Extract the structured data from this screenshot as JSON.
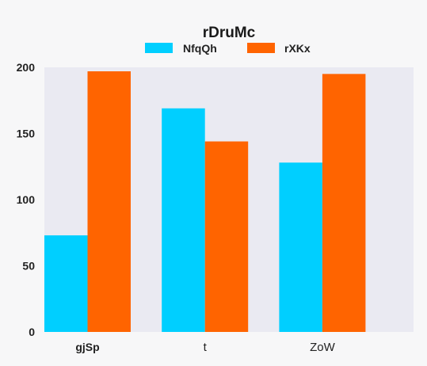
{
  "chart_data": {
    "type": "bar",
    "title": "rDruMc",
    "xlabel": "",
    "ylabel": "",
    "categories": [
      "gjSp",
      "t",
      "ZoW"
    ],
    "series": [
      {
        "name": "NfqQh",
        "color": "#00cfff",
        "values": [
          73,
          169,
          128
        ]
      },
      {
        "name": "rXKx",
        "color": "#ff6400",
        "values": [
          197,
          144,
          195
        ]
      }
    ],
    "ylim": [
      0,
      200
    ],
    "yticks": [
      0,
      50,
      100,
      150,
      200
    ],
    "grid": false,
    "legend_position": "top"
  },
  "colors": {
    "plot_background": "#eaeaf2",
    "page_background": "#f7f7f8"
  }
}
